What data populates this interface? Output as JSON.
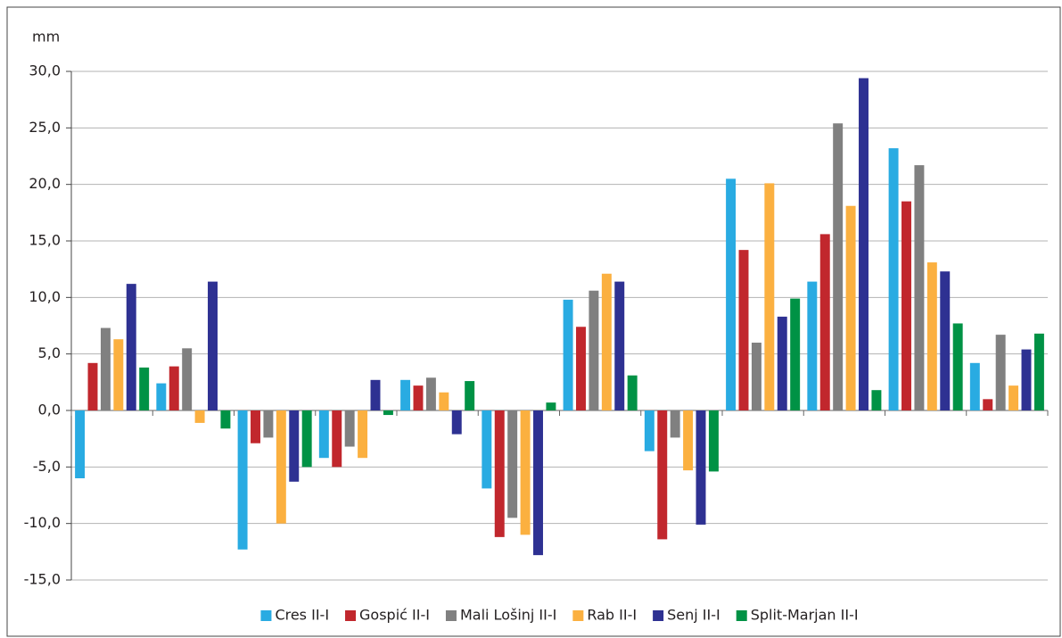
{
  "chart_data": {
    "type": "bar",
    "y_label": "mm",
    "categories": [
      null,
      null,
      null,
      null,
      null,
      null,
      null,
      null,
      null,
      null,
      null,
      null
    ],
    "series": [
      {
        "name": "Cres II-I",
        "color": "#29abe2",
        "values": [
          -6.0,
          2.4,
          -12.3,
          -4.2,
          2.7,
          -6.9,
          9.8,
          -3.6,
          20.5,
          11.4,
          23.2,
          4.2
        ]
      },
      {
        "name": "Gospić II-I",
        "color": "#c1272d",
        "values": [
          4.2,
          3.9,
          -2.9,
          -5.0,
          2.2,
          -11.2,
          7.4,
          -11.4,
          14.2,
          15.6,
          18.5,
          1.0
        ]
      },
      {
        "name": "Mali Lošinj II-I",
        "color": "#808080",
        "values": [
          7.3,
          5.5,
          -2.4,
          -3.2,
          2.9,
          -9.5,
          10.6,
          -2.4,
          6.0,
          25.4,
          21.7,
          6.7
        ]
      },
      {
        "name": "Rab II-I",
        "color": "#fbb040",
        "values": [
          6.3,
          -1.1,
          -10.0,
          -4.2,
          1.6,
          -11.0,
          12.1,
          -5.3,
          20.1,
          18.1,
          13.1,
          2.2
        ]
      },
      {
        "name": "Senj II-I",
        "color": "#2e3192",
        "values": [
          11.2,
          11.4,
          -6.3,
          2.7,
          -2.1,
          -12.8,
          11.4,
          -10.1,
          8.3,
          29.4,
          12.3,
          5.4
        ]
      },
      {
        "name": "Split-Marjan II-I",
        "color": "#009245",
        "values": [
          3.8,
          -1.6,
          -5.0,
          -0.4,
          2.6,
          0.7,
          3.1,
          -5.4,
          9.9,
          1.8,
          7.7,
          6.8
        ]
      }
    ],
    "ylim": [
      -15,
      30
    ],
    "yticks": [
      {
        "value": -15,
        "label": "-15,0"
      },
      {
        "value": -10,
        "label": "-10,0"
      },
      {
        "value": -5,
        "label": "-5,0"
      },
      {
        "value": 0,
        "label": "0,0"
      },
      {
        "value": 5,
        "label": "5,0"
      },
      {
        "value": 10,
        "label": "10,0"
      },
      {
        "value": 15,
        "label": "15,0"
      },
      {
        "value": 20,
        "label": "20,0"
      },
      {
        "value": 25,
        "label": "25,0"
      },
      {
        "value": 30,
        "label": "30,0"
      }
    ],
    "grid": true,
    "legend": "bottom"
  }
}
